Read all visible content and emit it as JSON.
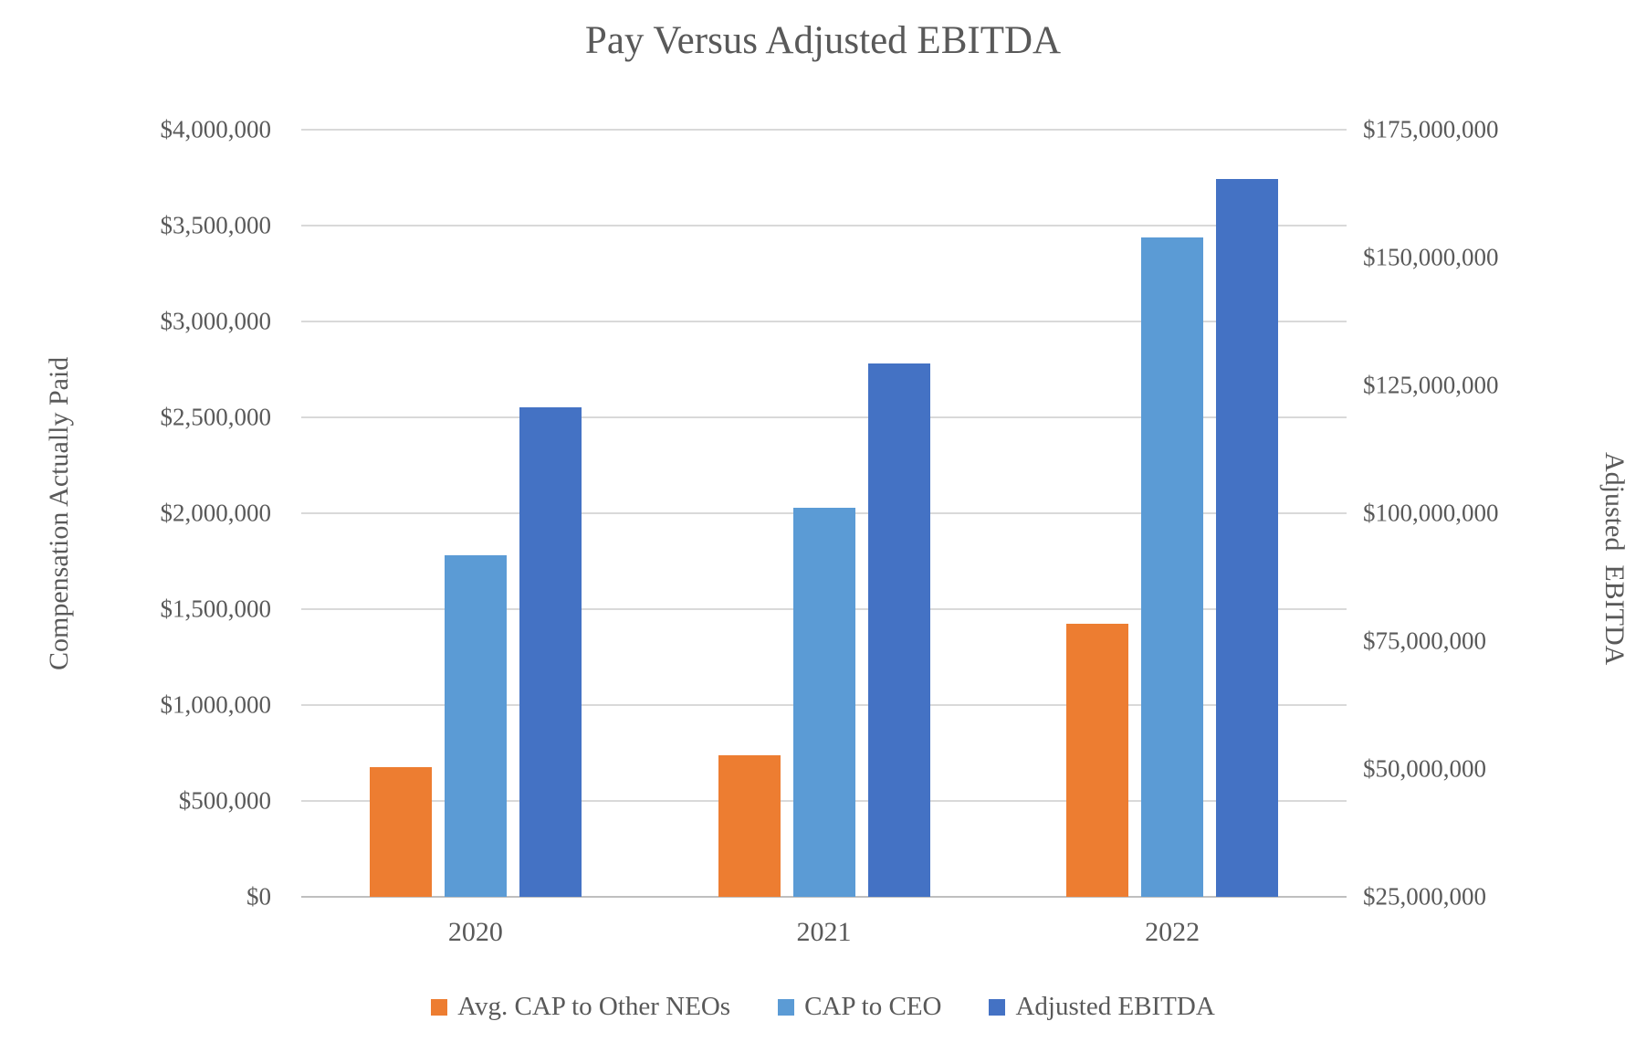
{
  "chart_data": {
    "type": "bar",
    "title": "Pay Versus Adjusted EBITDA",
    "categories": [
      "2020",
      "2021",
      "2022"
    ],
    "series": [
      {
        "name": "Avg. CAP to Other NEOs",
        "axis": "left",
        "color": "#ED7D31",
        "values": [
          675000,
          740000,
          1425000
        ]
      },
      {
        "name": "CAP to CEO",
        "axis": "left",
        "color": "#5B9BD5",
        "values": [
          1780000,
          2030000,
          3440000
        ]
      },
      {
        "name": "Adjusted EBITDA",
        "axis": "right",
        "color": "#4472C4",
        "values": [
          120700000,
          129300000,
          165400000
        ]
      }
    ],
    "left_axis": {
      "title": "Compensation Actually Paid",
      "min": 0,
      "max": 4000000,
      "step": 500000,
      "tick_labels": [
        "$0",
        "$500,000",
        "$1,000,000",
        "$1,500,000",
        "$2,000,000",
        "$2,500,000",
        "$3,000,000",
        "$3,500,000",
        "$4,000,000"
      ]
    },
    "right_axis": {
      "title": "Adjusted  EBITDA",
      "min": 25000000,
      "max": 175000000,
      "step": 25000000,
      "tick_labels": [
        "$25,000,000",
        "$50,000,000",
        "$75,000,000",
        "$100,000,000",
        "$125,000,000",
        "$150,000,000",
        "$175,000,000"
      ]
    },
    "legend_position": "bottom",
    "grid": true,
    "colors": {
      "text": "#595959",
      "gridline": "#D9D9D9",
      "axis_line": "#BFBFBF",
      "background": "#FFFFFF"
    }
  }
}
